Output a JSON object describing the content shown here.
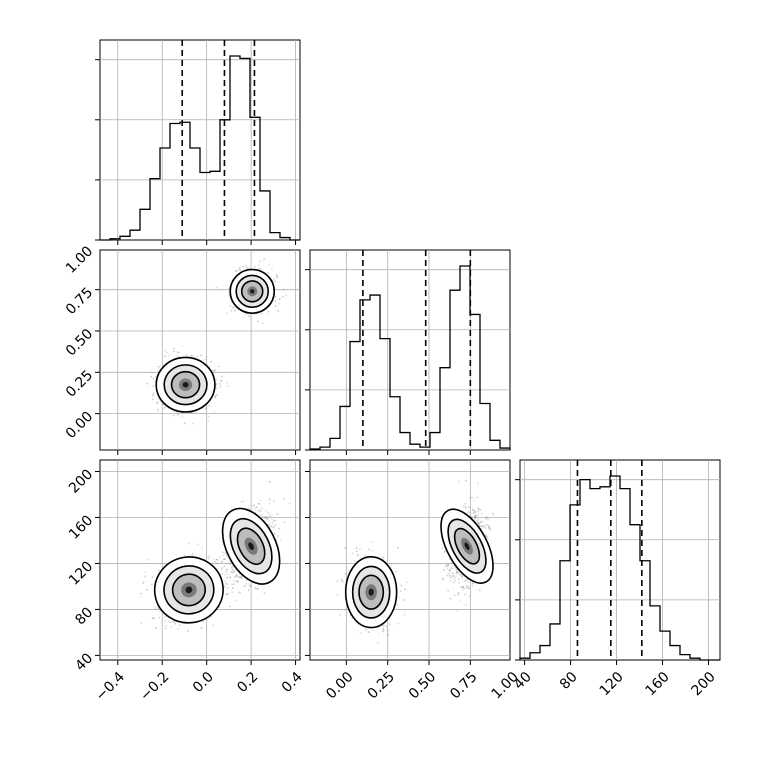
{
  "chart_data": {
    "type": "corner",
    "grid": true,
    "parameters": [
      {
        "ticks": [
          -0.4,
          -0.2,
          0.0,
          0.2,
          0.4
        ],
        "tick_labels": [
          "−0.4",
          "−0.2",
          "0.0",
          "0.2",
          "0.4"
        ],
        "range": [
          -0.48,
          0.42
        ],
        "hist": {
          "edges": [
            -0.48,
            -0.435,
            -0.39,
            -0.345,
            -0.3,
            -0.255,
            -0.21,
            -0.165,
            -0.12,
            -0.075,
            -0.03,
            0.015,
            0.06,
            0.105,
            0.15,
            0.195,
            0.24,
            0.285,
            0.33,
            0.375,
            0.42
          ],
          "counts": [
            0,
            1,
            3,
            8,
            25,
            50,
            75,
            95,
            96,
            75,
            55,
            56,
            98,
            150,
            148,
            100,
            40,
            6,
            2,
            0
          ]
        },
        "quantiles": [
          -0.11,
          0.08,
          0.215
        ]
      },
      {
        "ticks": [
          0.0,
          0.25,
          0.5,
          0.75,
          1.0
        ],
        "tick_labels": [
          "0.00",
          "0.25",
          "0.50",
          "0.75",
          "1.00"
        ],
        "range": [
          -0.22,
          0.99
        ],
        "hist": {
          "edges": [
            -0.22,
            -0.1595,
            -0.099,
            -0.0385,
            0.022,
            0.0825,
            0.143,
            0.2035,
            0.264,
            0.3245,
            0.385,
            0.4455,
            0.506,
            0.5665,
            0.627,
            0.6875,
            0.748,
            0.8085,
            0.869,
            0.9295,
            0.99
          ],
          "counts": [
            1,
            3,
            12,
            45,
            112,
            155,
            160,
            115,
            55,
            18,
            6,
            3,
            18,
            85,
            165,
            190,
            140,
            48,
            10,
            2
          ]
        },
        "quantiles": [
          0.1,
          0.48,
          0.75
        ]
      },
      {
        "ticks": [
          40,
          80,
          120,
          160,
          200
        ],
        "tick_labels": [
          "40",
          "80",
          "120",
          "160",
          "200"
        ],
        "range": [
          36,
          210
        ],
        "hist": {
          "edges": [
            36,
            44.7,
            53.4,
            62.1,
            70.8,
            79.5,
            88.2,
            96.9,
            105.6,
            114.3,
            123,
            131.7,
            140.4,
            149.1,
            157.8,
            166.5,
            175.2,
            183.9,
            192.6,
            201.3,
            210
          ],
          "counts": [
            1,
            4,
            8,
            20,
            55,
            86,
            100,
            95,
            96,
            102,
            95,
            75,
            55,
            30,
            16,
            8,
            3,
            1,
            0,
            0
          ]
        },
        "quantiles": [
          86,
          115,
          142
        ]
      }
    ],
    "pairs": [
      {
        "row": 1,
        "col": 0,
        "modes": [
          {
            "mean": [
              -0.095,
              0.175
            ],
            "sd": [
              0.06,
              0.075
            ],
            "rho": 0.0,
            "weight": 0.5
          },
          {
            "mean": [
              0.205,
              0.74
            ],
            "sd": [
              0.045,
              0.06
            ],
            "rho": 0.0,
            "weight": 0.5
          }
        ]
      },
      {
        "row": 2,
        "col": 0,
        "modes": [
          {
            "mean": [
              -0.08,
              97
            ],
            "sd": [
              0.07,
              13
            ],
            "rho": 0.2,
            "weight": 0.5
          },
          {
            "mean": [
              0.2,
              135
            ],
            "sd": [
              0.05,
              16
            ],
            "rho": 0.35,
            "weight": 0.5
          }
        ]
      },
      {
        "row": 2,
        "col": 1,
        "modes": [
          {
            "mean": [
              0.15,
              95
            ],
            "sd": [
              0.07,
              14
            ],
            "rho": 0.0,
            "weight": 0.5
          },
          {
            "mean": [
              0.73,
              135
            ],
            "sd": [
              0.055,
              16
            ],
            "rho": 0.3,
            "weight": 0.5
          }
        ]
      }
    ]
  }
}
